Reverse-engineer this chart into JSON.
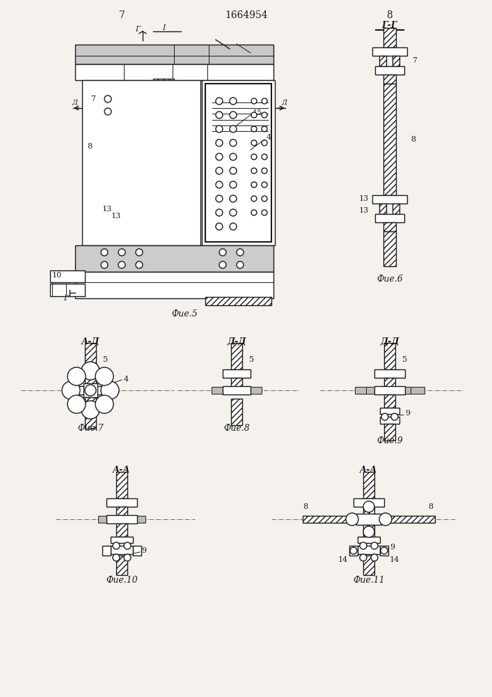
{
  "bg_color": "#f5f2ee",
  "line_color": "#1a1a1a",
  "page_nums": [
    "7",
    "8"
  ],
  "patent_num": "1664954",
  "fig_labels": {
    "fig5": "Фие.5",
    "fig6": "Фие.6",
    "fig7": "Фие.7",
    "fig8": "Фие.8",
    "fig9": "Фие.9",
    "fig10": "Фие.10",
    "fig11": "Фие.11"
  }
}
